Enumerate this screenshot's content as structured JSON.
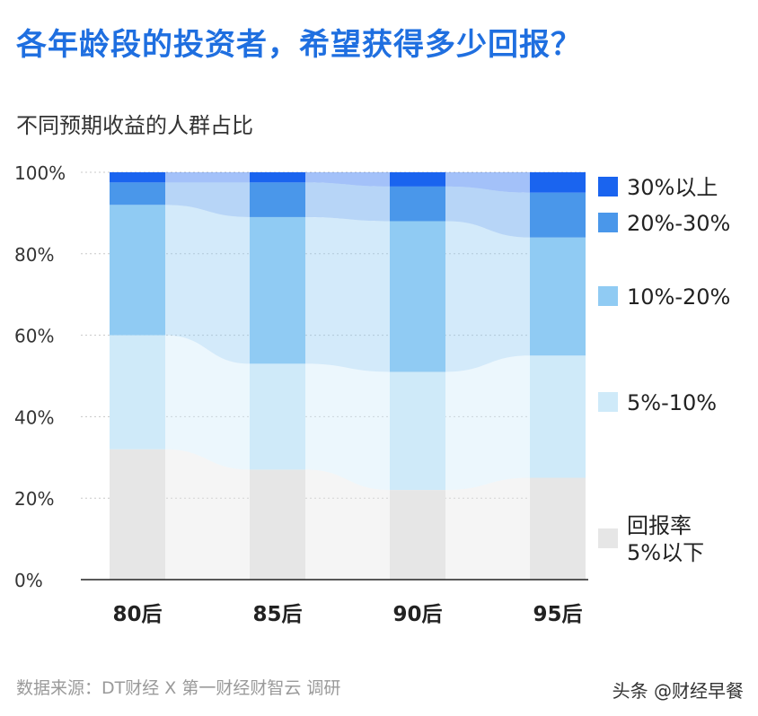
{
  "title": "各年龄段的投资者，希望获得多少回报？",
  "subtitle": "不同预期收益的人群占比",
  "source": "数据来源：DT财经 X 第一财经财智云 调研",
  "watermark": "头条 @财经早餐",
  "colors": {
    "series": [
      "#e6e6e6",
      "#cfeaf9",
      "#90cbf3",
      "#4a97ea",
      "#1a64ef"
    ],
    "title": "#1f6fe0"
  },
  "chart_data": {
    "type": "bar",
    "stacked": true,
    "categories": [
      "80后",
      "85后",
      "90后",
      "95后"
    ],
    "series": [
      {
        "name": "回报率5%以下",
        "values": [
          32,
          27,
          22,
          25
        ]
      },
      {
        "name": "5%-10%",
        "values": [
          28,
          26,
          29,
          30
        ]
      },
      {
        "name": "10%-20%",
        "values": [
          32,
          36,
          37,
          29
        ]
      },
      {
        "name": "20%-30%",
        "values": [
          5.5,
          8.5,
          8.5,
          11
        ]
      },
      {
        "name": "30%以上",
        "values": [
          2.5,
          2.5,
          3.5,
          5
        ]
      }
    ],
    "ylim": [
      0,
      100
    ],
    "yticks": [
      "0%",
      "20%",
      "40%",
      "60%",
      "80%",
      "100%"
    ],
    "legend_labels": [
      "30%以上",
      "20%-30%",
      "10%-20%",
      "5%-10%",
      "回报率\n5%以下"
    ],
    "legend_position": "right",
    "grid": true
  }
}
